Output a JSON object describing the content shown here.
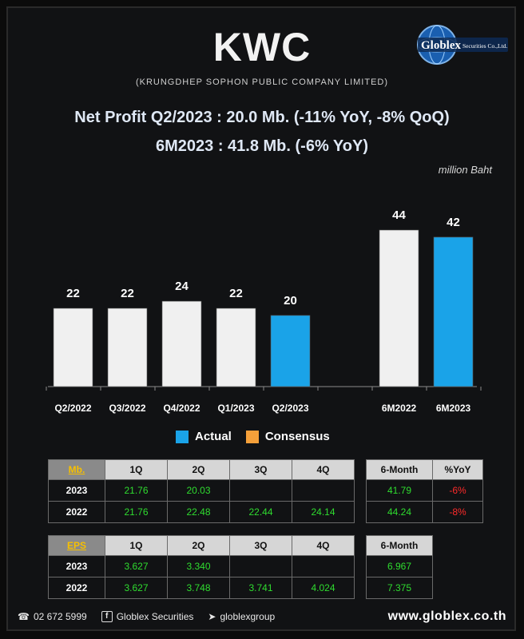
{
  "header": {
    "title": "KWC",
    "subtitle": "(KRUNGDHEP SOPHON PUBLIC COMPANY LIMITED)",
    "logo_text": "Globlex",
    "logo_sub": "Securities Co.,Ltd.",
    "line1": "Net Profit  Q2/2023 : 20.0 Mb. (-11% YoY, -8% QoQ)",
    "line2": "6M2023 : 41.8 Mb. (-6% YoY)",
    "unit": "million Baht"
  },
  "chart_data": {
    "type": "bar",
    "categories": [
      "Q2/2022",
      "Q3/2022",
      "Q4/2022",
      "Q1/2023",
      "Q2/2023",
      "",
      "6M2022",
      "6M2023"
    ],
    "values": [
      22,
      22,
      24,
      22,
      20,
      null,
      44,
      42
    ],
    "labels": [
      "22",
      "22",
      "24",
      "22",
      "20",
      "",
      "44",
      "42"
    ],
    "bar_roles": [
      "prior",
      "prior",
      "prior",
      "prior",
      "actual",
      "gap",
      "prior",
      "actual"
    ],
    "ylim": [
      0,
      50
    ],
    "grid": false,
    "colors": {
      "prior": "#f0f0f0",
      "actual": "#1aa3e8",
      "consensus": "#f5a03a"
    }
  },
  "legend": [
    {
      "label": "Actual",
      "color": "#1aa3e8"
    },
    {
      "label": "Consensus",
      "color": "#f5a03a"
    }
  ],
  "mb_table": {
    "corner": "Mb.",
    "headers": [
      "1Q",
      "2Q",
      "3Q",
      "4Q"
    ],
    "rows": [
      {
        "year": "2023",
        "cells": [
          "21.76",
          "20.03",
          "",
          ""
        ]
      },
      {
        "year": "2022",
        "cells": [
          "21.76",
          "22.48",
          "22.44",
          "24.14"
        ]
      }
    ]
  },
  "mb_side": {
    "headers": [
      "6-Month",
      "%YoY"
    ],
    "rows": [
      [
        "41.79",
        "-6%"
      ],
      [
        "44.24",
        "-8%"
      ]
    ]
  },
  "eps_table": {
    "corner": "EPS",
    "headers": [
      "1Q",
      "2Q",
      "3Q",
      "4Q"
    ],
    "rows": [
      {
        "year": "2023",
        "cells": [
          "3.627",
          "3.340",
          "",
          ""
        ]
      },
      {
        "year": "2022",
        "cells": [
          "3.627",
          "3.748",
          "3.741",
          "4.024"
        ]
      }
    ]
  },
  "eps_side": {
    "headers": [
      "6-Month"
    ],
    "rows": [
      [
        "6.967"
      ],
      [
        "7.375"
      ]
    ]
  },
  "footer": {
    "phone": "02 672 5999",
    "facebook": "Globlex Securities",
    "telegram": "globlexgroup",
    "website": "www.globlex.co.th"
  }
}
